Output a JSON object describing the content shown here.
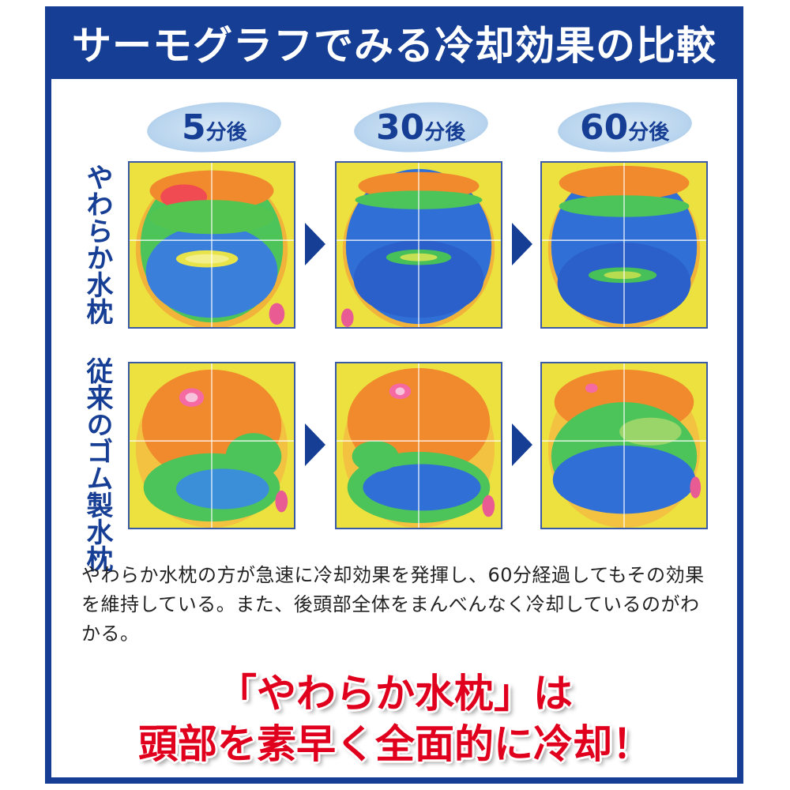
{
  "title": "サーモグラフでみる冷却効果の比較",
  "time_labels": [
    {
      "num": "5",
      "unit": "分後"
    },
    {
      "num": "30",
      "unit": "分後"
    },
    {
      "num": "60",
      "unit": "分後"
    }
  ],
  "rows": [
    {
      "label": "やわらか水枕"
    },
    {
      "label": "従来のゴム製水枕"
    }
  ],
  "description": "やわらか水枕の方が急速に冷却効果を発揮し、60分経過してもその効果を維持している。また、後頭部全体をまんべんなく冷却しているのがわかる。",
  "slogan": {
    "line1": "「やわらか水枕」は",
    "line2": "頭部を素早く全面的に冷却！"
  },
  "colors": {
    "brand_blue": "#173e95",
    "slogan_red": "#e0001e",
    "thermo_hot": "#f08a2c",
    "thermo_warm": "#f2e23c",
    "thermo_mid": "#3fc456",
    "thermo_cool": "#2f6fd6",
    "thermo_background": "#ece13f"
  }
}
